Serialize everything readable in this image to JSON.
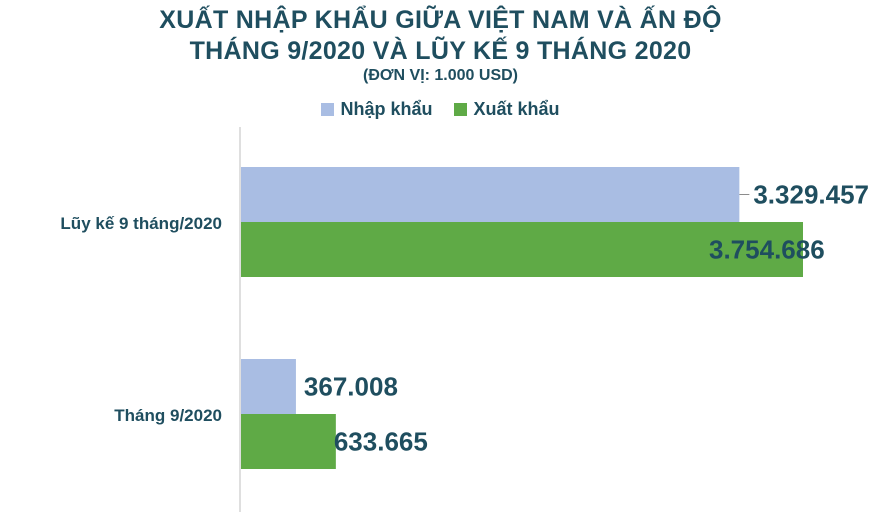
{
  "title_line1": "XUẤT NHẬP KHẨU GIỮA VIỆT NAM VÀ ẤN ĐỘ",
  "title_line2": "THÁNG 9/2020 VÀ LŨY KẾ 9 THÁNG 2020",
  "subtitle": "(ĐƠN VỊ: 1.000 USD)",
  "chart_data": {
    "type": "bar",
    "orientation": "horizontal",
    "title": "XUẤT NHẬP KHẨU GIỮA VIỆT NAM VÀ ẤN ĐỘ THÁNG 9/2020 VÀ LŨY KẾ 9 THÁNG 2020",
    "subtitle": "(ĐƠN VỊ: 1.000 USD)",
    "categories": [
      "Lũy kế 9 tháng/2020",
      "Tháng 9/2020"
    ],
    "series": [
      {
        "name": "Nhập khẩu",
        "color": "#a9bde3",
        "values": [
          3329457,
          367008
        ],
        "labels": [
          "3.329.457",
          "367.008"
        ]
      },
      {
        "name": "Xuất khẩu",
        "color": "#5faa46",
        "values": [
          3754686,
          633665
        ],
        "labels": [
          "3.754.686",
          "633.665"
        ]
      }
    ],
    "xlim": [
      0,
      4000000
    ],
    "grid": false,
    "legend": "top-center",
    "axis_color": "#bfbfbf"
  }
}
